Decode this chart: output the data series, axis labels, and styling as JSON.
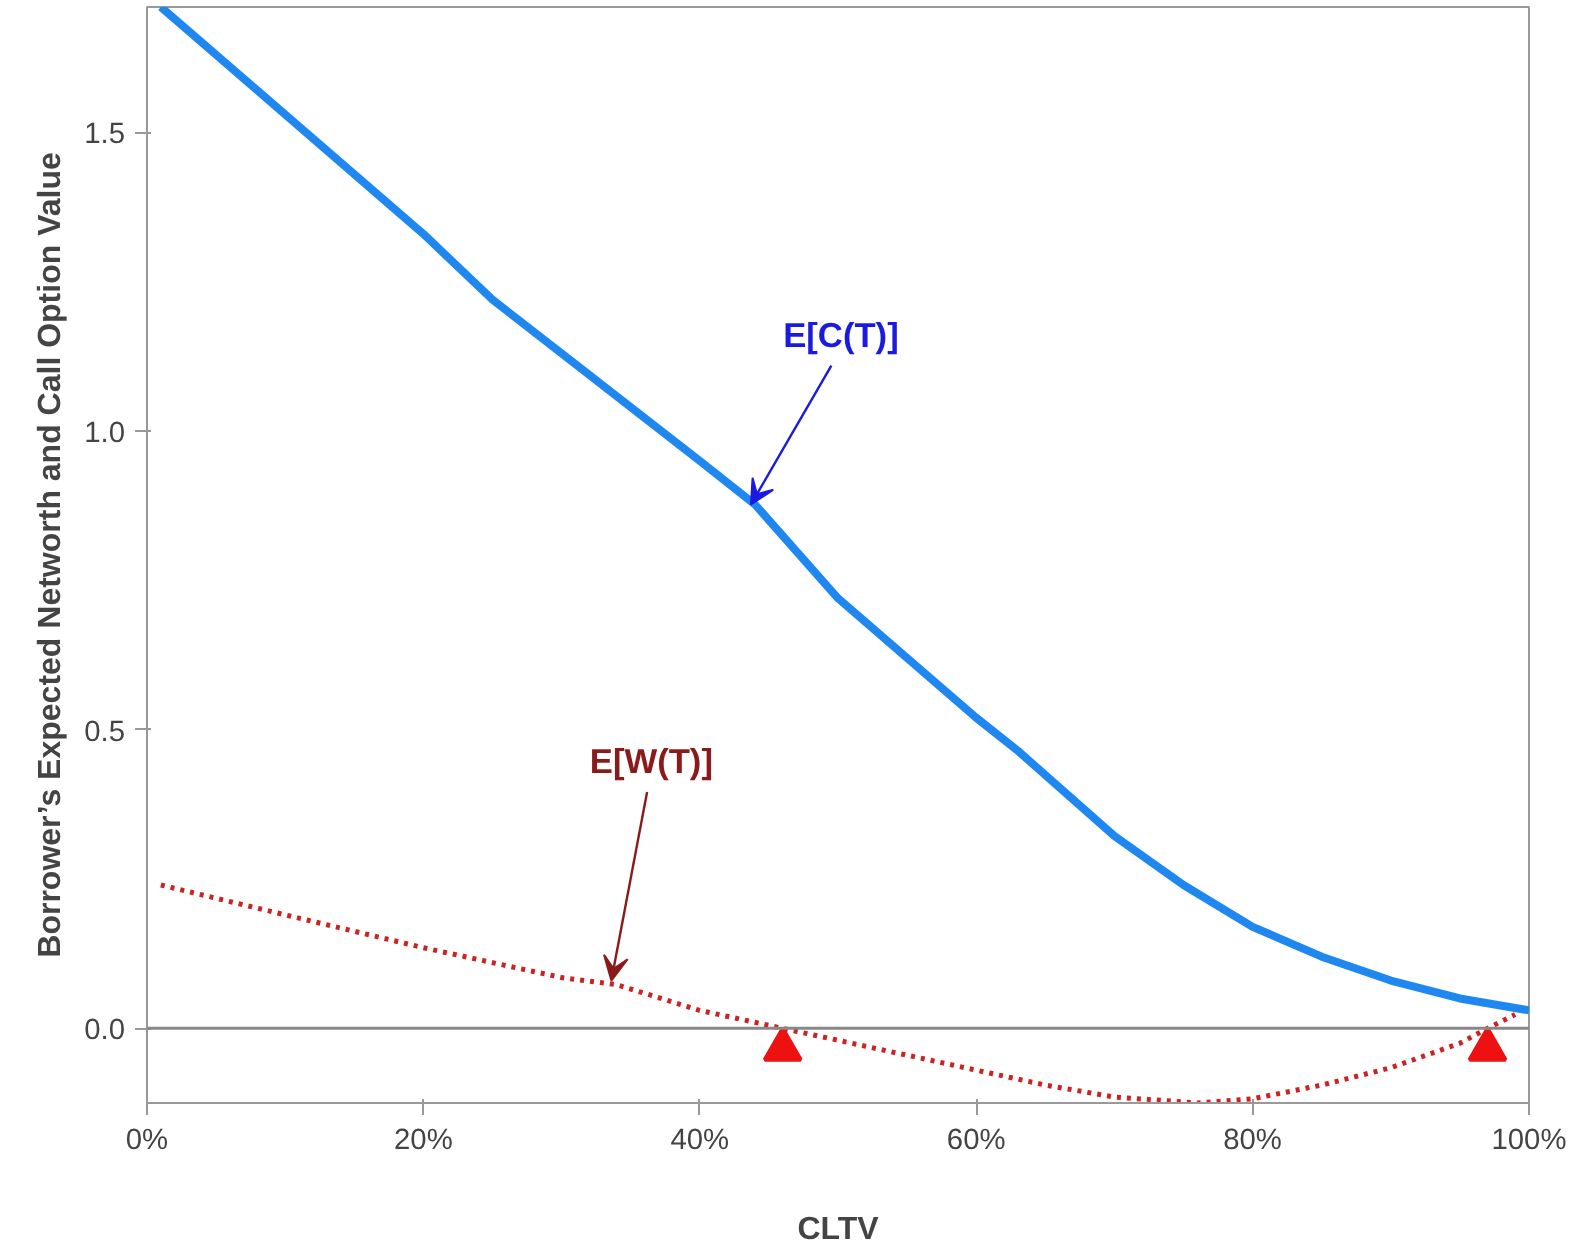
{
  "chart_data": {
    "type": "line",
    "xlabel": "CLTV",
    "ylabel": "Borrower’s Expected Networth and Call Option Value",
    "xlim": [
      0,
      100
    ],
    "ylim": [
      -0.125,
      1.71
    ],
    "xticks": [
      {
        "value": 0,
        "label": "0%"
      },
      {
        "value": 20,
        "label": "20%"
      },
      {
        "value": 40,
        "label": "40%"
      },
      {
        "value": 60,
        "label": "60%"
      },
      {
        "value": 80,
        "label": "80%"
      },
      {
        "value": 100,
        "label": "100%"
      }
    ],
    "yticks": [
      {
        "value": 0,
        "label": "0.0"
      },
      {
        "value": 0.5,
        "label": "0.5"
      },
      {
        "value": 1,
        "label": "1.0"
      },
      {
        "value": 1.5,
        "label": "1.5"
      }
    ],
    "grid": false,
    "ref_lines": [
      {
        "axis": "y",
        "value": 0,
        "color": "#888888"
      }
    ],
    "annotations": [
      {
        "text": "E[C(T)]",
        "x": 43.7,
        "y": 0.877
      },
      {
        "text": "E[W(T)]",
        "x": 33.6,
        "y": 0.08
      }
    ],
    "series": [
      {
        "color": "#1e88f0",
        "line_style": "solid",
        "x": [
          1,
          10,
          20,
          25,
          30,
          40,
          44,
          50,
          55,
          60,
          63,
          70,
          75,
          80,
          85,
          90,
          95,
          100
        ],
        "values": [
          1.71,
          1.53,
          1.33,
          1.22,
          1.13,
          0.95,
          0.877,
          0.72,
          0.62,
          0.52,
          0.465,
          0.322,
          0.24,
          0.17,
          0.12,
          0.08,
          0.05,
          0.03
        ]
      },
      {
        "color": "#cc2222",
        "line_style": "dotted",
        "x": [
          1,
          10,
          20,
          30,
          34,
          40,
          46,
          55,
          60,
          65,
          70,
          76,
          80,
          85,
          90,
          95,
          97,
          99
        ],
        "values": [
          0.24,
          0.19,
          0.135,
          0.085,
          0.073,
          0.03,
          0,
          -0.045,
          -0.07,
          -0.095,
          -0.115,
          -0.125,
          -0.118,
          -0.095,
          -0.066,
          -0.025,
          0,
          0.023
        ]
      },
      {
        "type": "scatter",
        "color": "#ee1111",
        "marker": "triangle",
        "x": [
          46,
          97
        ],
        "values": [
          -0.035,
          -0.035
        ]
      }
    ]
  }
}
